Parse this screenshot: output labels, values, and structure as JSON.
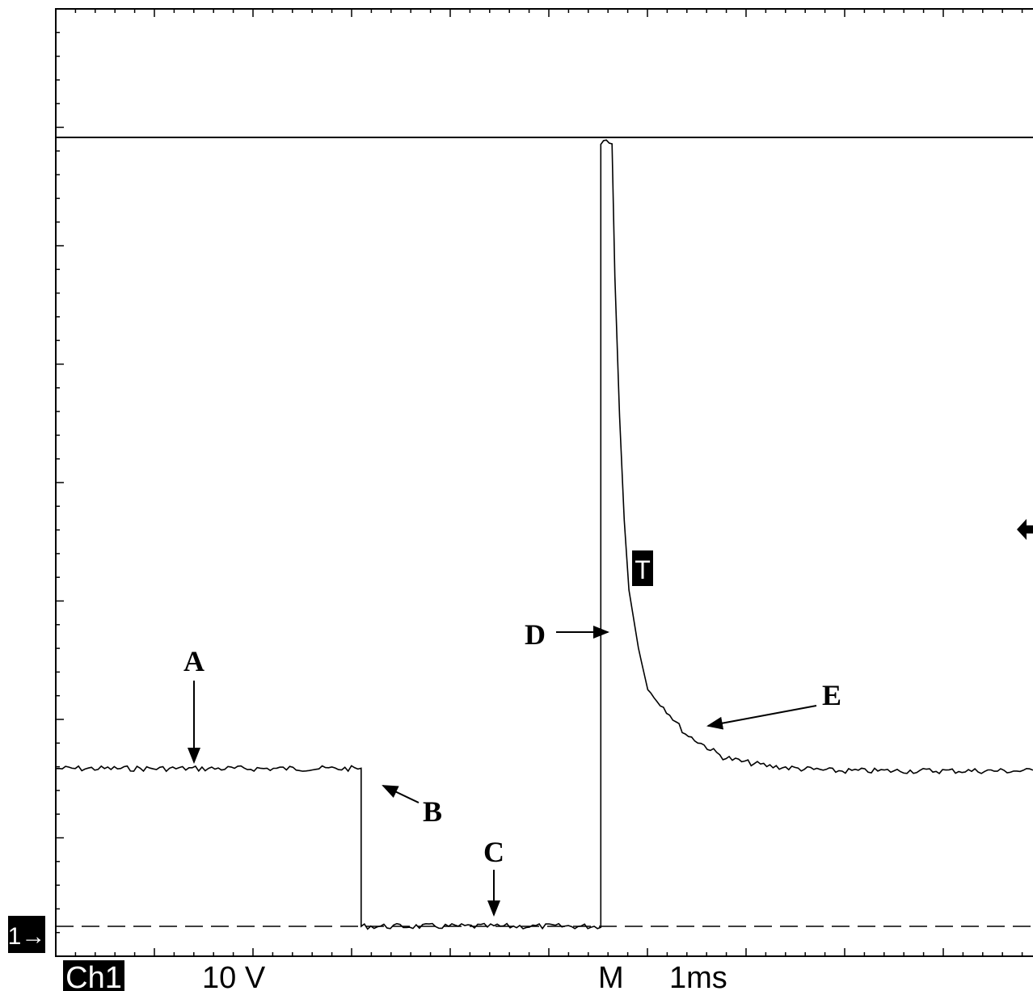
{
  "chart_data": {
    "type": "line",
    "title": "",
    "xlabel": "",
    "ylabel": "",
    "x_unit": "ms",
    "y_unit": "V",
    "xlim": [
      -6.3,
      4.1
    ],
    "ylim": [
      -0.2,
      34
    ],
    "series": [
      {
        "x": [
          -6.3,
          -3.05,
          -3.05,
          -0.5,
          -0.5,
          -0.44,
          -0.38,
          -0.35,
          -0.3,
          -0.25,
          -0.2,
          -0.1,
          0,
          0.2,
          0.4,
          0.6,
          0.8,
          1.0,
          1.3,
          1.6,
          2.0,
          3.0,
          4.1
        ],
        "y": [
          6.8,
          6.8,
          0,
          0,
          33.7,
          34.0,
          33.7,
          28,
          22,
          17.5,
          14.5,
          12,
          10.2,
          9.3,
          8.3,
          7.8,
          7.3,
          7.1,
          6.9,
          6.8,
          6.7,
          6.7,
          6.7
        ]
      }
    ],
    "annotations": [
      "A",
      "B",
      "C",
      "D",
      "E"
    ]
  },
  "readout": {
    "channel_marker": "1→",
    "channel": "Ch1",
    "volts_per_div": "10 V",
    "timebase_mode": "M",
    "time_per_div": "1ms",
    "trigger_marker": "T"
  },
  "labels": {
    "a": "A",
    "b": "B",
    "c": "C",
    "d": "D",
    "e": "E"
  }
}
